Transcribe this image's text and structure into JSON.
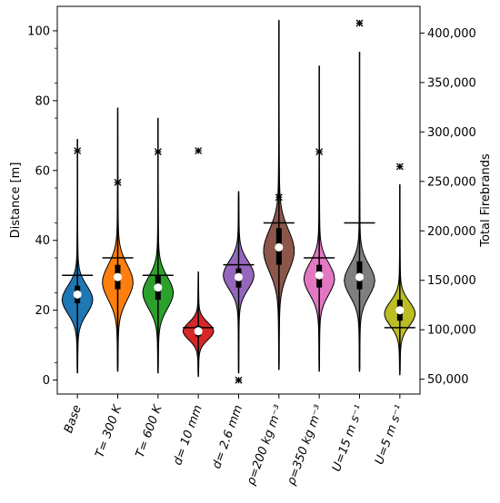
{
  "chart_data": {
    "type": "violin",
    "title": "",
    "xlabel": "",
    "ylabel": "Distance [m]",
    "ylim": [
      -4,
      107
    ],
    "yticks": [
      0,
      20,
      40,
      60,
      80,
      100
    ],
    "y2label": "Total Firebrands",
    "y2lim": [
      35000,
      427000
    ],
    "y2ticks": [
      50000,
      100000,
      150000,
      200000,
      250000,
      300000,
      350000,
      400000
    ],
    "y2ticklabels": [
      "50,000",
      "100,000",
      "150,000",
      "200,000",
      "250,000",
      "300,000",
      "350,000",
      "400,000"
    ],
    "categories": [
      "Base",
      "T= 300 K",
      "T= 600 K",
      "d= 10 mm",
      "d= 2.6 mm",
      "ρ=200 kg m⁻³",
      "ρ=350 kg m⁻³",
      "U=15 m s⁻¹",
      "U=5 m s⁻¹"
    ],
    "colors": [
      "#1f77b4",
      "#ff7f0e",
      "#2ca02c",
      "#d62728",
      "#9467bd",
      "#8c564b",
      "#e377c2",
      "#7f7f7f",
      "#bcbd22"
    ],
    "violins": [
      {
        "min": 2,
        "max": 69,
        "q1": 22,
        "q3": 27,
        "median": 24.5,
        "mean": 30,
        "peak": 23,
        "spread": 4,
        "maxw": 0.38
      },
      {
        "min": 2.5,
        "max": 78,
        "q1": 26,
        "q3": 33,
        "median": 29.5,
        "mean": 35,
        "peak": 28,
        "spread": 5,
        "maxw": 0.38
      },
      {
        "min": 2,
        "max": 75,
        "q1": 23,
        "q3": 30,
        "median": 26.5,
        "mean": 30,
        "peak": 25,
        "spread": 4.5,
        "maxw": 0.38
      },
      {
        "min": 1,
        "max": 31,
        "q1": 12.5,
        "q3": 15.5,
        "median": 14,
        "mean": 15,
        "peak": 14,
        "spread": 2.5,
        "maxw": 0.38
      },
      {
        "min": 2,
        "max": 54,
        "q1": 26.5,
        "q3": 32,
        "median": 29.5,
        "mean": 33,
        "peak": 30,
        "spread": 4,
        "maxw": 0.38
      },
      {
        "min": 3,
        "max": 103,
        "q1": 33,
        "q3": 43.5,
        "median": 38,
        "mean": 45,
        "peak": 37,
        "spread": 6,
        "maxw": 0.38
      },
      {
        "min": 2.5,
        "max": 90,
        "q1": 26.5,
        "q3": 33,
        "median": 30,
        "mean": 35,
        "peak": 29,
        "spread": 4.5,
        "maxw": 0.38
      },
      {
        "min": 2.5,
        "max": 94,
        "q1": 26,
        "q3": 34,
        "median": 29.5,
        "mean": 45,
        "peak": 28.5,
        "spread": 4.5,
        "maxw": 0.38
      },
      {
        "min": 1.5,
        "max": 56,
        "q1": 17,
        "q3": 23,
        "median": 20,
        "mean": 15,
        "peak": 19,
        "spread": 3.5,
        "maxw": 0.38
      }
    ],
    "total_firebrands": [
      281000,
      249000,
      280000,
      281000,
      49000,
      234000,
      280000,
      410000,
      265000
    ],
    "grid": false,
    "legend": "none"
  }
}
